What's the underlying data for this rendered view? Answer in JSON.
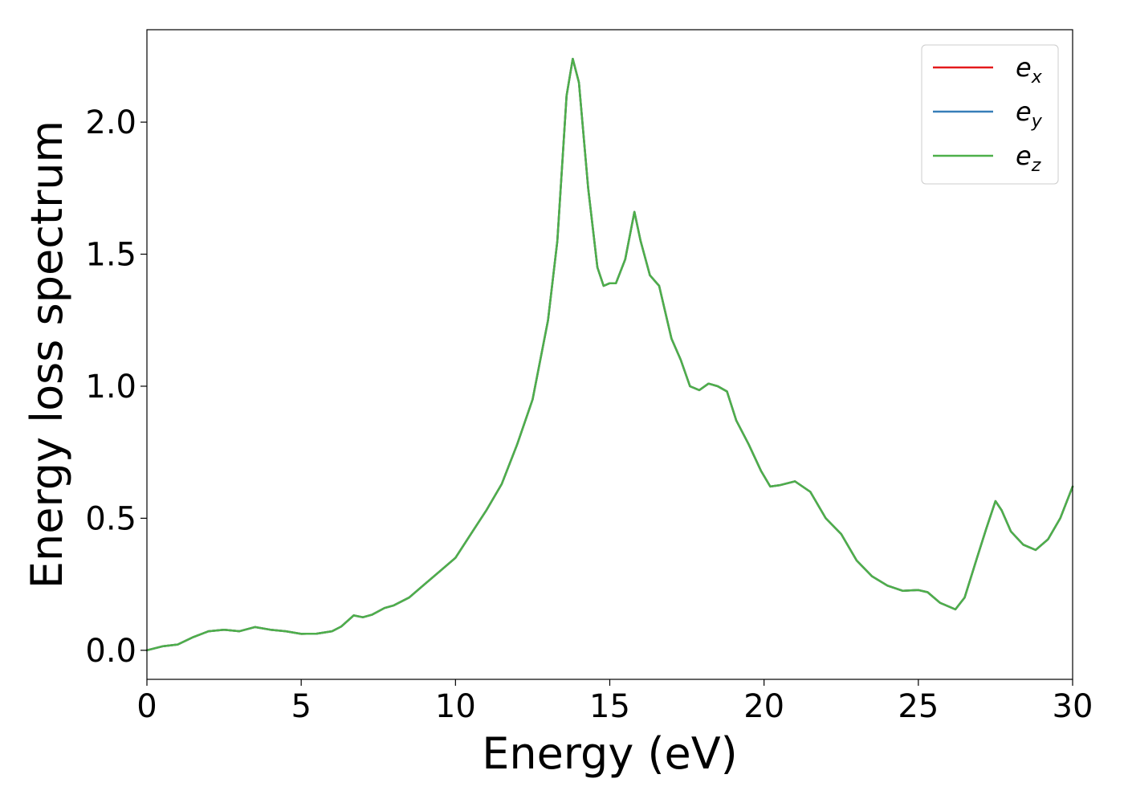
{
  "chart_data": {
    "type": "line",
    "xlabel": "Energy (eV)",
    "ylabel": "Energy loss spectrum",
    "xlim": [
      0,
      30
    ],
    "ylim": [
      -0.11,
      2.35
    ],
    "x_ticks": [
      "0",
      "5",
      "10",
      "15",
      "20",
      "25",
      "30"
    ],
    "y_ticks": [
      "0.0",
      "0.5",
      "1.0",
      "1.5",
      "2.0"
    ],
    "grid": false,
    "legend_position": "top-right",
    "x": [
      0,
      0.5,
      1.0,
      1.5,
      2.0,
      2.5,
      3.0,
      3.5,
      4.0,
      4.5,
      5.0,
      5.5,
      6.0,
      6.3,
      6.7,
      7.0,
      7.3,
      7.7,
      8.0,
      8.5,
      9.0,
      9.5,
      10.0,
      10.5,
      11.0,
      11.5,
      12.0,
      12.5,
      13.0,
      13.3,
      13.6,
      13.8,
      14.0,
      14.3,
      14.6,
      14.8,
      15.0,
      15.2,
      15.5,
      15.8,
      16.0,
      16.3,
      16.6,
      17.0,
      17.3,
      17.6,
      17.9,
      18.2,
      18.5,
      18.8,
      19.1,
      19.5,
      19.9,
      20.2,
      20.5,
      21.0,
      21.5,
      22.0,
      22.5,
      23.0,
      23.5,
      24.0,
      24.5,
      25.0,
      25.3,
      25.7,
      26.2,
      26.5,
      26.9,
      27.2,
      27.5,
      27.7,
      28.0,
      28.4,
      28.8,
      29.2,
      29.6,
      30.0
    ],
    "series": [
      {
        "name": "e_x",
        "color": "#e41a1c",
        "y": [
          0.0,
          0.015,
          0.022,
          0.05,
          0.072,
          0.078,
          0.072,
          0.088,
          0.078,
          0.072,
          0.062,
          0.063,
          0.072,
          0.09,
          0.132,
          0.125,
          0.135,
          0.16,
          0.17,
          0.2,
          0.25,
          0.3,
          0.35,
          0.44,
          0.53,
          0.63,
          0.78,
          0.95,
          1.25,
          1.55,
          2.1,
          2.24,
          2.15,
          1.75,
          1.45,
          1.38,
          1.39,
          1.39,
          1.48,
          1.66,
          1.55,
          1.42,
          1.38,
          1.18,
          1.1,
          1.0,
          0.985,
          1.01,
          1.0,
          0.98,
          0.87,
          0.78,
          0.68,
          0.62,
          0.625,
          0.64,
          0.6,
          0.5,
          0.44,
          0.34,
          0.28,
          0.245,
          0.225,
          0.228,
          0.22,
          0.18,
          0.155,
          0.2,
          0.35,
          0.46,
          0.565,
          0.53,
          0.45,
          0.4,
          0.38,
          0.42,
          0.5,
          0.62
        ]
      },
      {
        "name": "e_y",
        "color": "#377eb8",
        "y": [
          0.0,
          0.015,
          0.022,
          0.05,
          0.072,
          0.078,
          0.072,
          0.088,
          0.078,
          0.072,
          0.062,
          0.063,
          0.072,
          0.09,
          0.132,
          0.125,
          0.135,
          0.16,
          0.17,
          0.2,
          0.25,
          0.3,
          0.35,
          0.44,
          0.53,
          0.63,
          0.78,
          0.95,
          1.25,
          1.55,
          2.1,
          2.24,
          2.15,
          1.75,
          1.45,
          1.38,
          1.39,
          1.39,
          1.48,
          1.66,
          1.55,
          1.42,
          1.38,
          1.18,
          1.1,
          1.0,
          0.985,
          1.01,
          1.0,
          0.98,
          0.87,
          0.78,
          0.68,
          0.62,
          0.625,
          0.64,
          0.6,
          0.5,
          0.44,
          0.34,
          0.28,
          0.245,
          0.225,
          0.228,
          0.22,
          0.18,
          0.155,
          0.2,
          0.35,
          0.46,
          0.565,
          0.53,
          0.45,
          0.4,
          0.38,
          0.42,
          0.5,
          0.62
        ]
      },
      {
        "name": "e_z",
        "color": "#4daf4a",
        "y": [
          0.0,
          0.015,
          0.022,
          0.05,
          0.072,
          0.078,
          0.072,
          0.088,
          0.078,
          0.072,
          0.062,
          0.063,
          0.072,
          0.09,
          0.132,
          0.125,
          0.135,
          0.16,
          0.17,
          0.2,
          0.25,
          0.3,
          0.35,
          0.44,
          0.53,
          0.63,
          0.78,
          0.95,
          1.25,
          1.55,
          2.1,
          2.24,
          2.15,
          1.75,
          1.45,
          1.38,
          1.39,
          1.39,
          1.48,
          1.66,
          1.55,
          1.42,
          1.38,
          1.18,
          1.1,
          1.0,
          0.985,
          1.01,
          1.0,
          0.98,
          0.87,
          0.78,
          0.68,
          0.62,
          0.625,
          0.64,
          0.6,
          0.5,
          0.44,
          0.34,
          0.28,
          0.245,
          0.225,
          0.228,
          0.22,
          0.18,
          0.155,
          0.2,
          0.35,
          0.46,
          0.565,
          0.53,
          0.45,
          0.4,
          0.38,
          0.42,
          0.5,
          0.62
        ]
      }
    ],
    "legend": [
      {
        "base": "e",
        "sub": "x",
        "color": "#e41a1c"
      },
      {
        "base": "e",
        "sub": "y",
        "color": "#377eb8"
      },
      {
        "base": "e",
        "sub": "z",
        "color": "#4daf4a"
      }
    ]
  }
}
